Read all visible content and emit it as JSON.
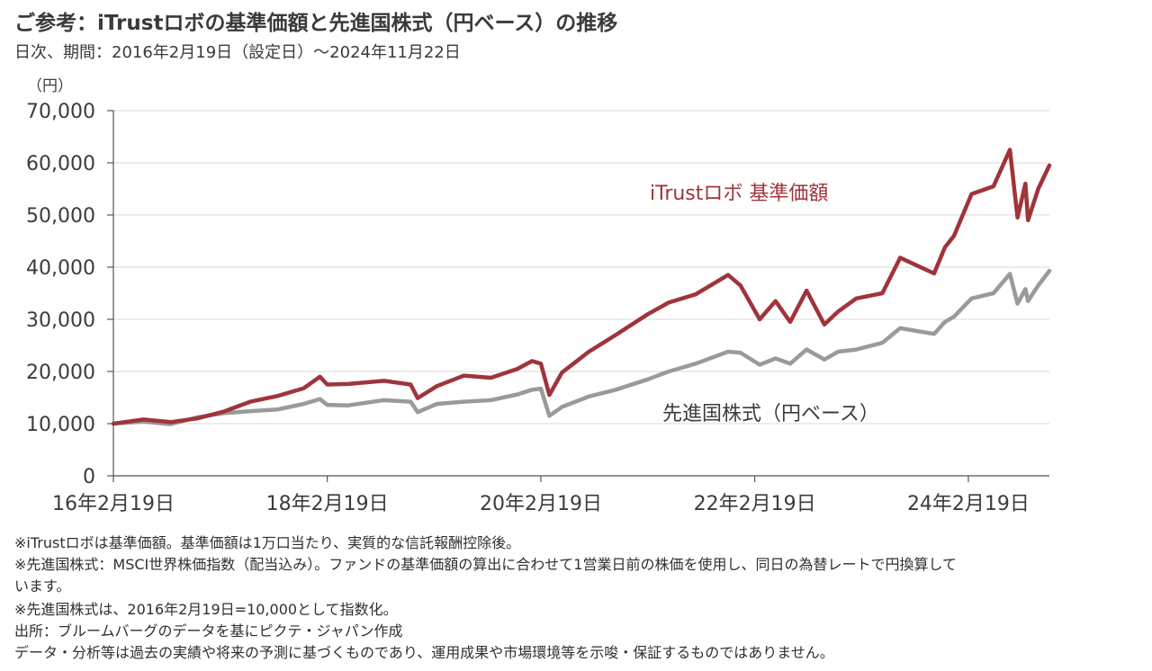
{
  "header": {
    "title": "ご参考：iTrustロボの基準価額と先進国株式（円ベース）の推移",
    "subtitle": "日次、期間：2016年2月19日（設定日）～2024年11月22日"
  },
  "chart_data": {
    "type": "line",
    "ylabel": "（円）",
    "ylim": [
      0,
      70000
    ],
    "yticks": [
      0,
      10000,
      20000,
      30000,
      40000,
      50000,
      60000,
      70000
    ],
    "ytick_labels": [
      "0",
      "10,000",
      "20,000",
      "30,000",
      "40,000",
      "50,000",
      "60,000",
      "70,000"
    ],
    "xlim": [
      "2016-02-19",
      "2024-11-22"
    ],
    "xticks": [
      "2016-02-19",
      "2018-02-19",
      "2020-02-19",
      "2022-02-19",
      "2024-02-19"
    ],
    "xtick_labels": [
      "16年2月19日",
      "18年2月19日",
      "20年2月19日",
      "22年2月19日",
      "24年2月19日"
    ],
    "grid": true,
    "series": [
      {
        "name": "iTrustロボ 基準価額",
        "color": "#a0343b",
        "points": [
          [
            "2016-02-19",
            10000
          ],
          [
            "2016-06-01",
            10800
          ],
          [
            "2016-09-01",
            10300
          ],
          [
            "2016-12-01",
            11000
          ],
          [
            "2017-03-01",
            12300
          ],
          [
            "2017-06-01",
            14200
          ],
          [
            "2017-09-01",
            15300
          ],
          [
            "2017-12-01",
            16800
          ],
          [
            "2018-01-25",
            19000
          ],
          [
            "2018-02-19",
            17500
          ],
          [
            "2018-05-01",
            17600
          ],
          [
            "2018-09-01",
            18200
          ],
          [
            "2018-12-01",
            17500
          ],
          [
            "2018-12-25",
            14900
          ],
          [
            "2019-03-01",
            17200
          ],
          [
            "2019-06-01",
            19200
          ],
          [
            "2019-09-01",
            18800
          ],
          [
            "2019-12-01",
            20500
          ],
          [
            "2020-01-20",
            22000
          ],
          [
            "2020-02-19",
            21500
          ],
          [
            "2020-03-19",
            15500
          ],
          [
            "2020-05-01",
            19800
          ],
          [
            "2020-08-01",
            23800
          ],
          [
            "2020-11-01",
            27000
          ],
          [
            "2021-02-19",
            31000
          ],
          [
            "2021-05-01",
            33200
          ],
          [
            "2021-08-01",
            34800
          ],
          [
            "2021-11-20",
            38500
          ],
          [
            "2022-01-01",
            36500
          ],
          [
            "2022-03-08",
            30000
          ],
          [
            "2022-05-01",
            33500
          ],
          [
            "2022-06-20",
            29500
          ],
          [
            "2022-08-15",
            35500
          ],
          [
            "2022-10-15",
            29000
          ],
          [
            "2022-12-01",
            31500
          ],
          [
            "2023-02-01",
            34000
          ],
          [
            "2023-05-01",
            35000
          ],
          [
            "2023-07-01",
            41800
          ],
          [
            "2023-10-25",
            38800
          ],
          [
            "2023-12-01",
            43800
          ],
          [
            "2024-01-01",
            46000
          ],
          [
            "2024-03-01",
            54000
          ],
          [
            "2024-05-15",
            55500
          ],
          [
            "2024-07-10",
            62500
          ],
          [
            "2024-08-05",
            49500
          ],
          [
            "2024-09-01",
            56000
          ],
          [
            "2024-09-10",
            49000
          ],
          [
            "2024-10-15",
            55000
          ],
          [
            "2024-11-22",
            59500
          ]
        ]
      },
      {
        "name": "先進国株式（円ベース）",
        "color": "#9a9a9a",
        "points": [
          [
            "2016-02-19",
            10000
          ],
          [
            "2016-06-01",
            10400
          ],
          [
            "2016-09-01",
            9900
          ],
          [
            "2016-12-01",
            11200
          ],
          [
            "2017-03-01",
            12000
          ],
          [
            "2017-06-01",
            12400
          ],
          [
            "2017-09-01",
            12700
          ],
          [
            "2017-12-01",
            13800
          ],
          [
            "2018-01-25",
            14700
          ],
          [
            "2018-02-19",
            13600
          ],
          [
            "2018-05-01",
            13500
          ],
          [
            "2018-09-01",
            14500
          ],
          [
            "2018-12-01",
            14200
          ],
          [
            "2018-12-25",
            12200
          ],
          [
            "2019-03-01",
            13800
          ],
          [
            "2019-06-01",
            14200
          ],
          [
            "2019-09-01",
            14500
          ],
          [
            "2019-12-01",
            15600
          ],
          [
            "2020-01-20",
            16500
          ],
          [
            "2020-02-19",
            16700
          ],
          [
            "2020-03-19",
            11500
          ],
          [
            "2020-05-01",
            13200
          ],
          [
            "2020-08-01",
            15200
          ],
          [
            "2020-11-01",
            16500
          ],
          [
            "2021-02-19",
            18500
          ],
          [
            "2021-05-01",
            20000
          ],
          [
            "2021-08-01",
            21500
          ],
          [
            "2021-11-20",
            23800
          ],
          [
            "2022-01-01",
            23600
          ],
          [
            "2022-03-08",
            21300
          ],
          [
            "2022-05-01",
            22500
          ],
          [
            "2022-06-20",
            21500
          ],
          [
            "2022-08-15",
            24200
          ],
          [
            "2022-10-15",
            22300
          ],
          [
            "2022-12-01",
            23800
          ],
          [
            "2023-02-01",
            24200
          ],
          [
            "2023-05-01",
            25500
          ],
          [
            "2023-07-01",
            28300
          ],
          [
            "2023-10-25",
            27200
          ],
          [
            "2023-12-01",
            29500
          ],
          [
            "2024-01-01",
            30500
          ],
          [
            "2024-03-01",
            34000
          ],
          [
            "2024-05-15",
            35000
          ],
          [
            "2024-07-10",
            38700
          ],
          [
            "2024-08-05",
            33000
          ],
          [
            "2024-09-01",
            35800
          ],
          [
            "2024-09-10",
            33500
          ],
          [
            "2024-10-15",
            36500
          ],
          [
            "2024-11-22",
            39300
          ]
        ]
      }
    ],
    "annotations": [
      "iTrustロボ 基準価額",
      "先進国株式（円ベース）"
    ]
  },
  "notes": [
    "※iTrustロボは基準価額。基準価額は1万口当たり、実質的な信託報酬控除後。",
    "※先進国株式：MSCI世界株価指数（配当込み）。ファンドの基準価額の算出に合わせて1営業日前の株価を使用し、同日の為替レートで円換算して",
    "います。",
    "※先進国株式は、2016年2月19日=10,000として指数化。",
    "出所：ブルームバーグのデータを基にピクテ・ジャパン作成",
    "データ・分析等は過去の実績や将来の予測に基づくものであり、運用成果や市場環境等を示唆・保証するものではありません。"
  ]
}
